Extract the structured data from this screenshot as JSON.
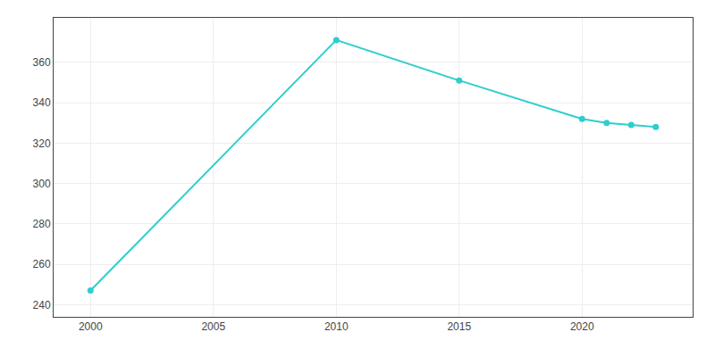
{
  "chart_data": {
    "type": "line",
    "x": [
      2000,
      2010,
      2015,
      2020,
      2021,
      2022,
      2023
    ],
    "values": [
      247,
      371,
      351,
      332,
      330,
      329,
      328
    ],
    "color": "#2ECECE",
    "marker": "circle",
    "line_style": "solid",
    "xlim": [
      1998.5,
      2024.5
    ],
    "xticks": [
      2000,
      2005,
      2010,
      2015,
      2020
    ],
    "ylim": [
      234,
      382
    ],
    "yticks": [
      240,
      260,
      280,
      300,
      320,
      340,
      360
    ],
    "grid": true
  }
}
